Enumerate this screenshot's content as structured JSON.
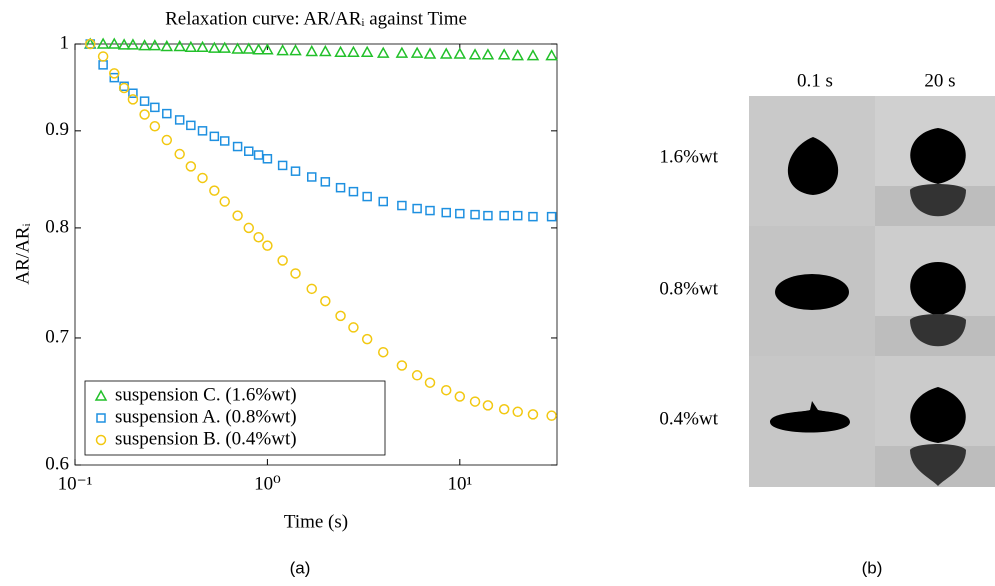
{
  "chart_data": {
    "type": "scatter",
    "title": "Relaxation curve: AR/ARᵢ against Time",
    "xlabel": "Time (s)",
    "ylabel": "AR/ARᵢ",
    "xscale": "log",
    "yscale": "log",
    "xlim": [
      0.1,
      32
    ],
    "ylim": [
      0.6,
      1
    ],
    "xticks": [
      {
        "value": 0.1,
        "label": "10⁻¹"
      },
      {
        "value": 1,
        "label": "10⁰"
      },
      {
        "value": 10,
        "label": "10¹"
      }
    ],
    "yticks": [
      0.6,
      0.7,
      0.8,
      0.9,
      1
    ],
    "legend": "lower left",
    "x": [
      0.12,
      0.14,
      0.16,
      0.18,
      0.2,
      0.23,
      0.26,
      0.3,
      0.35,
      0.4,
      0.46,
      0.53,
      0.6,
      0.7,
      0.8,
      0.9,
      1,
      1.2,
      1.4,
      1.7,
      2,
      2.4,
      2.8,
      3.3,
      4,
      5,
      6,
      7,
      8.5,
      10,
      12,
      14,
      17,
      20,
      24,
      30
    ],
    "series": [
      {
        "name": "suspension C. (1.6%wt)",
        "color": "#22c02a",
        "marker": "triangle",
        "values": [
          1,
          1,
          1,
          0.999,
          0.999,
          0.998,
          0.998,
          0.997,
          0.997,
          0.996,
          0.996,
          0.995,
          0.995,
          0.994,
          0.994,
          0.993,
          0.993,
          0.992,
          0.992,
          0.991,
          0.991,
          0.99,
          0.99,
          0.99,
          0.989,
          0.989,
          0.989,
          0.988,
          0.988,
          0.988,
          0.987,
          0.987,
          0.987,
          0.986,
          0.986,
          0.986
        ]
      },
      {
        "name": "suspension A. (0.8%wt)",
        "color": "#1e90e0",
        "marker": "square",
        "values": [
          1,
          0.975,
          0.96,
          0.95,
          0.942,
          0.933,
          0.926,
          0.919,
          0.912,
          0.906,
          0.9,
          0.894,
          0.889,
          0.883,
          0.878,
          0.874,
          0.87,
          0.863,
          0.857,
          0.851,
          0.846,
          0.84,
          0.836,
          0.831,
          0.826,
          0.822,
          0.819,
          0.817,
          0.815,
          0.814,
          0.813,
          0.812,
          0.812,
          0.812,
          0.811,
          0.811
        ]
      },
      {
        "name": "suspension B. (0.4%wt)",
        "color": "#f2c811",
        "marker": "circle",
        "values": [
          1,
          0.985,
          0.965,
          0.948,
          0.935,
          0.918,
          0.905,
          0.89,
          0.875,
          0.862,
          0.85,
          0.837,
          0.826,
          0.812,
          0.8,
          0.791,
          0.783,
          0.769,
          0.757,
          0.743,
          0.732,
          0.719,
          0.709,
          0.699,
          0.688,
          0.677,
          0.669,
          0.663,
          0.657,
          0.652,
          0.648,
          0.645,
          0.642,
          0.64,
          0.638,
          0.637
        ]
      }
    ]
  },
  "panel_b": {
    "columns": [
      "0.1 s",
      "20 s"
    ],
    "rows": [
      "1.6%wt",
      "0.8%wt",
      "0.4%wt"
    ]
  },
  "captions": [
    "(a)",
    "(b)"
  ]
}
